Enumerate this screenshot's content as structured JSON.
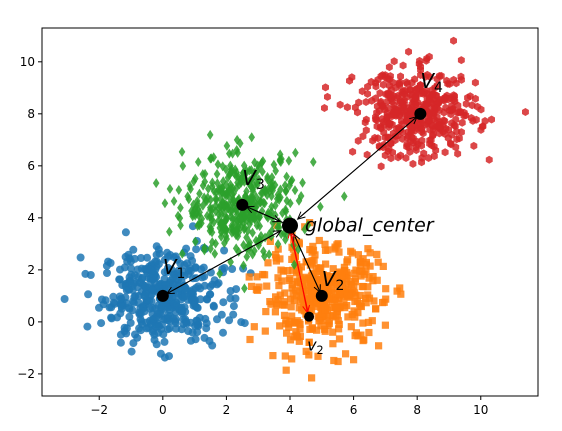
{
  "chart_data": {
    "type": "scatter",
    "xlim": [
      -3.8,
      11.8
    ],
    "ylim": [
      -2.85,
      11.3
    ],
    "xticks": [
      -2,
      0,
      2,
      4,
      6,
      8,
      10
    ],
    "yticks": [
      -2,
      0,
      2,
      4,
      6,
      8,
      10
    ],
    "grid": false,
    "legend": "none",
    "series": [
      {
        "marker": "circle",
        "color": "#1f77b4",
        "center": [
          0,
          1
        ],
        "spread": [
          0.95,
          0.9
        ],
        "count": 420
      },
      {
        "marker": "square",
        "color": "#ff7f0e",
        "center": [
          5,
          1
        ],
        "spread": [
          0.95,
          0.95
        ],
        "count": 420
      },
      {
        "marker": "diamond",
        "color": "#2ca02c",
        "center": [
          2.5,
          4.5
        ],
        "spread": [
          0.9,
          0.95
        ],
        "count": 420
      },
      {
        "marker": "hexagon",
        "color": "#d62728",
        "center": [
          8,
          8
        ],
        "spread": [
          0.95,
          0.85
        ],
        "count": 420
      }
    ],
    "centers": [
      {
        "label": "V_1",
        "base": "V",
        "sub": "1",
        "x": 0,
        "y": 1
      },
      {
        "label": "V_2",
        "base": "V",
        "sub": "2",
        "x": 5,
        "y": 1
      },
      {
        "label": "V_3",
        "base": "V",
        "sub": "3",
        "x": 2.5,
        "y": 4.5
      },
      {
        "label": "V_4",
        "base": "V",
        "sub": "4",
        "x": 8.1,
        "y": 8
      }
    ],
    "global_center": {
      "label": "global_center",
      "x": 4,
      "y": 3.7
    },
    "red_point": {
      "label": "v_2",
      "base": "v",
      "sub": "2",
      "x": 4.6,
      "y": 0.2
    },
    "arrows_from_global": [
      "V_1",
      "V_2",
      "V_3",
      "V_4"
    ],
    "arrows_to_global": [
      "V_1",
      "V_2",
      "V_3",
      "V_4"
    ],
    "red_arrows": [
      {
        "from": [
          4.6,
          0.2
        ],
        "to": [
          4.0,
          3.5
        ]
      },
      {
        "from": [
          4.05,
          3.4
        ],
        "to": [
          4.55,
          0.35
        ]
      }
    ]
  }
}
